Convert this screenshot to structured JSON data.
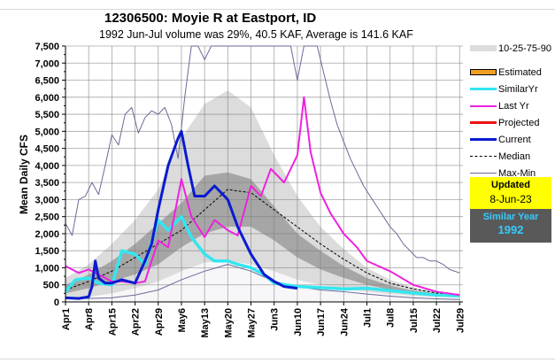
{
  "chart_data": {
    "type": "line",
    "title": "12306500: Moyie R at Eastport, ID",
    "subtitle": "1992 Jun-Jul volume was 29%, 40.5 KAF, Average is 141.6 KAF",
    "xlabel": "",
    "ylabel": "Mean Daily CFS",
    "ylim": [
      0,
      7500
    ],
    "yticks": [
      "0",
      "500",
      "1,000",
      "1,500",
      "2,000",
      "2,500",
      "3,000",
      "3,500",
      "4,000",
      "4,500",
      "5,000",
      "5,500",
      "6,000",
      "6,500",
      "7,000",
      "7,500"
    ],
    "ytick_values": [
      0,
      500,
      1000,
      1500,
      2000,
      2500,
      3000,
      3500,
      4000,
      4500,
      5000,
      5500,
      6000,
      6500,
      7000,
      7500
    ],
    "xlim": [
      0,
      120
    ],
    "xticks": [
      "Apr1",
      "Apr8",
      "Apr15",
      "Apr22",
      "Apr29",
      "May6",
      "May13",
      "May20",
      "May27",
      "Jun3",
      "Jun10",
      "Jun17",
      "Jun24",
      "Jul1",
      "Jul8",
      "Jul15",
      "Jul22",
      "Jul29"
    ],
    "xtick_days": [
      0,
      7,
      14,
      21,
      28,
      35,
      42,
      49,
      56,
      63,
      70,
      77,
      84,
      91,
      98,
      105,
      112,
      119
    ],
    "grid": true,
    "x_unit": "day index from Apr1",
    "bands": {
      "x": [
        0,
        7,
        14,
        21,
        28,
        35,
        42,
        49,
        56,
        63,
        70,
        77,
        84,
        91,
        98,
        105,
        112,
        119
      ],
      "p10": [
        100,
        150,
        250,
        400,
        600,
        900,
        1150,
        1200,
        1100,
        900,
        650,
        500,
        380,
        300,
        230,
        180,
        150,
        130
      ],
      "p25": [
        250,
        400,
        600,
        800,
        1100,
        1600,
        2000,
        2200,
        2200,
        1800,
        1300,
        950,
        700,
        500,
        350,
        260,
        200,
        160
      ],
      "p75": [
        500,
        800,
        1200,
        1700,
        2300,
        2900,
        3700,
        3800,
        3600,
        2800,
        2000,
        1500,
        1050,
        700,
        480,
        330,
        250,
        190
      ],
      "p90": [
        700,
        1100,
        1700,
        2400,
        3300,
        4800,
        5800,
        6200,
        5700,
        4300,
        3100,
        2200,
        1550,
        1000,
        650,
        420,
        300,
        230
      ]
    },
    "series": [
      {
        "name": "Median",
        "x": [
          0,
          7,
          14,
          21,
          28,
          35,
          42,
          49,
          52,
          56,
          63,
          70,
          77,
          84,
          91,
          98,
          105,
          112,
          119
        ],
        "values": [
          350,
          600,
          900,
          1300,
          1700,
          2100,
          2700,
          3300,
          3250,
          3200,
          2700,
          2200,
          1700,
          1250,
          850,
          550,
          380,
          260,
          190
        ]
      },
      {
        "name": "Max-Min (max)",
        "x": [
          0,
          2,
          4,
          6,
          8,
          10,
          12,
          14,
          16,
          18,
          20,
          22,
          24,
          26,
          28,
          30,
          32,
          34,
          36,
          38,
          40,
          42,
          44,
          46,
          48,
          50,
          52,
          54,
          56,
          58,
          60,
          62,
          64,
          66,
          68,
          70,
          72,
          74,
          76,
          78,
          80,
          82,
          84,
          86,
          88,
          90,
          92,
          94,
          96,
          98,
          100,
          102,
          104,
          106,
          108,
          110,
          112,
          114,
          116,
          119
        ],
        "values": [
          2300,
          1950,
          3000,
          3100,
          3500,
          3150,
          4000,
          4900,
          4600,
          5500,
          5700,
          4950,
          5400,
          5600,
          5500,
          5700,
          5200,
          4200,
          6000,
          7500,
          7500,
          7100,
          7500,
          7500,
          7500,
          7500,
          7500,
          7500,
          7500,
          7500,
          7500,
          7500,
          7500,
          7500,
          7500,
          6500,
          7500,
          7500,
          7500,
          6700,
          5900,
          5200,
          4700,
          4200,
          3800,
          3400,
          3100,
          2800,
          2500,
          2200,
          2000,
          1700,
          1500,
          1300,
          1300,
          1200,
          1200,
          1100,
          950,
          850
        ]
      },
      {
        "name": "Max-Min (min)",
        "x": [
          0,
          7,
          14,
          21,
          28,
          35,
          42,
          49,
          56,
          63,
          70,
          77,
          84,
          91,
          98,
          105,
          112,
          119
        ],
        "values": [
          100,
          100,
          120,
          200,
          350,
          650,
          900,
          1100,
          900,
          600,
          450,
          350,
          300,
          230,
          170,
          120,
          90,
          70
        ]
      },
      {
        "name": "SimilarYr",
        "year": "1992",
        "x": [
          0,
          3,
          7,
          10,
          14,
          17,
          21,
          24,
          28,
          31,
          35,
          38,
          42,
          45,
          49,
          52,
          56,
          60,
          63,
          70,
          77,
          84,
          91,
          98,
          105,
          112,
          119
        ],
        "values": [
          300,
          650,
          700,
          550,
          500,
          1500,
          1400,
          1100,
          2400,
          2100,
          2500,
          1900,
          1400,
          1200,
          1200,
          1100,
          1000,
          800,
          550,
          450,
          420,
          380,
          400,
          330,
          260,
          200,
          180
        ]
      },
      {
        "name": "Last Yr",
        "x": [
          0,
          4,
          7,
          10,
          14,
          17,
          21,
          24,
          28,
          31,
          33,
          35,
          38,
          42,
          45,
          49,
          52,
          56,
          59,
          62,
          66,
          70,
          72,
          74,
          77,
          80,
          84,
          88,
          91,
          98,
          105,
          112,
          119
        ],
        "values": [
          1050,
          850,
          950,
          800,
          600,
          600,
          550,
          600,
          1800,
          1600,
          2600,
          3600,
          2500,
          1900,
          2400,
          2100,
          1950,
          3400,
          3100,
          3900,
          3500,
          4300,
          6000,
          4400,
          3200,
          2600,
          2000,
          1600,
          1200,
          900,
          500,
          300,
          200
        ]
      },
      {
        "name": "Current",
        "x": [
          0,
          4,
          7,
          8,
          9,
          10,
          12,
          14,
          17,
          21,
          24,
          26,
          28,
          31,
          34,
          35,
          37,
          39,
          42,
          45,
          49,
          52,
          56,
          60,
          63,
          66,
          70
        ],
        "values": [
          120,
          100,
          150,
          450,
          1200,
          700,
          550,
          550,
          650,
          550,
          1200,
          1700,
          2700,
          4000,
          4800,
          5000,
          4000,
          3100,
          3100,
          3400,
          3000,
          2200,
          1400,
          800,
          600,
          450,
          400
        ]
      }
    ],
    "legend": [
      "10-25-75-90",
      "Estimated",
      "SimilarYr",
      "Last Yr",
      "Projected",
      "Current",
      "Median",
      "Max-Min"
    ],
    "legend_position": "right"
  },
  "colors": {
    "p10_90": "#dcdcdc",
    "p25_75": "#a6a6a6",
    "below": "#f7f7f9",
    "median": "#000000",
    "maxmin": "#6a6a9a",
    "similar": "#33e6f0",
    "lastyr": "#ee22dd",
    "projected": "#ee1111",
    "current": "#0a1ad0",
    "estimated": "#f0a020"
  },
  "legend": {
    "items": [
      {
        "label": "10-25-75-90"
      },
      {
        "label": "Estimated"
      },
      {
        "label": "SimilarYr"
      },
      {
        "label": "Last Yr"
      },
      {
        "label": "Projected"
      },
      {
        "label": "Current"
      },
      {
        "label": "Median"
      },
      {
        "label": "Max-Min"
      }
    ]
  },
  "updated": {
    "label": "Updated",
    "date": "8-Jun-23"
  },
  "similar_year": {
    "label": "Similar Year",
    "year": "1992"
  }
}
